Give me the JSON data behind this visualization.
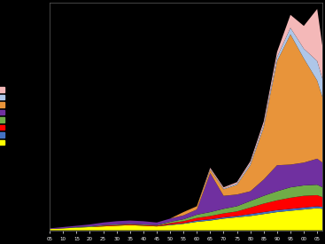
{
  "years": [
    1905,
    1910,
    1915,
    1920,
    1925,
    1930,
    1935,
    1940,
    1945,
    1950,
    1955,
    1960,
    1965,
    1970,
    1975,
    1980,
    1985,
    1990,
    1995,
    2000,
    2005,
    2007
  ],
  "series": {
    "pink": [
      0.0,
      0.0,
      0.0,
      0.0,
      0.0,
      0.0,
      0.0,
      0.0,
      0.0,
      0.0,
      0.0,
      0.0,
      0.02,
      0.02,
      0.02,
      0.03,
      0.05,
      0.08,
      0.2,
      0.35,
      0.8,
      0.5
    ],
    "light_blue": [
      0.0,
      0.0,
      0.0,
      0.0,
      0.0,
      0.0,
      0.0,
      0.0,
      0.0,
      0.0,
      0.0,
      0.0,
      0.01,
      0.01,
      0.02,
      0.03,
      0.04,
      0.06,
      0.1,
      0.15,
      0.3,
      0.28
    ],
    "orange": [
      0.0,
      0.0,
      0.0,
      0.0,
      0.0,
      0.0,
      0.0,
      0.0,
      0.0,
      0.0,
      0.05,
      0.05,
      0.05,
      0.1,
      0.15,
      0.4,
      0.8,
      1.6,
      2.0,
      1.6,
      1.2,
      1.0
    ],
    "purple": [
      0.01,
      0.02,
      0.02,
      0.03,
      0.04,
      0.05,
      0.05,
      0.05,
      0.04,
      0.05,
      0.06,
      0.08,
      0.6,
      0.2,
      0.18,
      0.15,
      0.25,
      0.4,
      0.35,
      0.35,
      0.4,
      0.38
    ],
    "green": [
      0.0,
      0.0,
      0.01,
      0.01,
      0.01,
      0.01,
      0.01,
      0.01,
      0.01,
      0.02,
      0.03,
      0.05,
      0.06,
      0.07,
      0.08,
      0.1,
      0.12,
      0.14,
      0.16,
      0.16,
      0.16,
      0.15
    ],
    "red": [
      0.0,
      0.0,
      0.0,
      0.0,
      0.01,
      0.01,
      0.01,
      0.01,
      0.01,
      0.02,
      0.03,
      0.04,
      0.05,
      0.06,
      0.07,
      0.1,
      0.13,
      0.15,
      0.17,
      0.18,
      0.17,
      0.15
    ],
    "blue": [
      0.0,
      0.0,
      0.0,
      0.0,
      0.0,
      0.0,
      0.0,
      0.0,
      0.0,
      0.01,
      0.01,
      0.02,
      0.02,
      0.02,
      0.02,
      0.03,
      0.03,
      0.03,
      0.03,
      0.03,
      0.03,
      0.03
    ],
    "yellow": [
      0.02,
      0.03,
      0.04,
      0.05,
      0.06,
      0.07,
      0.08,
      0.07,
      0.06,
      0.08,
      0.1,
      0.13,
      0.15,
      0.18,
      0.2,
      0.22,
      0.25,
      0.28,
      0.3,
      0.32,
      0.34,
      0.33
    ]
  },
  "colors": {
    "pink": "#f4b8b8",
    "light_blue": "#aec6e8",
    "orange": "#e8943a",
    "purple": "#7030a0",
    "green": "#70ad47",
    "red": "#ff0000",
    "blue": "#4472c4",
    "yellow": "#ffff00"
  },
  "background_color": "#000000",
  "plot_background": "#000000",
  "grid_color": "#808080",
  "ylim_max": 3.5,
  "xlim": [
    1905,
    2007
  ],
  "n_grid_lines": 6
}
